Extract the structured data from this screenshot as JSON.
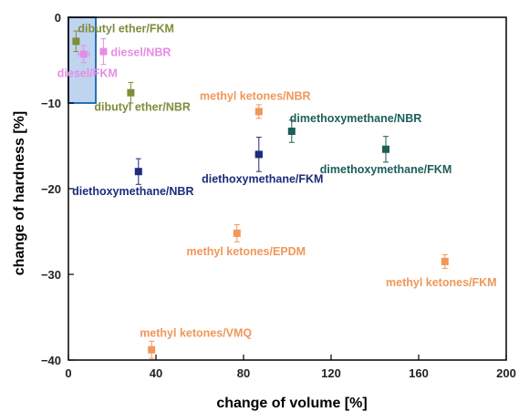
{
  "chart_data": {
    "type": "scatter",
    "xlabel": "change of volume   [%]",
    "ylabel": "change of hardness   [%]",
    "xlim": [
      0,
      200
    ],
    "ylim": [
      -40,
      0
    ],
    "xticks": [
      0,
      40,
      80,
      120,
      160,
      200
    ],
    "yticks": [
      0,
      -10,
      -20,
      -30,
      -40
    ],
    "grid": false,
    "points": [
      {
        "label": "dibutyl ether/FKM",
        "x": 3.5,
        "y": -2.8,
        "yerr": 1.2,
        "xerr": 0,
        "color": "#7f8c3b",
        "label_pos": "right-above"
      },
      {
        "label": "diesel/NBR",
        "x": 16,
        "y": -4,
        "yerr": 1.5,
        "xerr": 0,
        "color": "#e68ce6",
        "label_pos": "right"
      },
      {
        "label": "diesel/FKM",
        "x": 7,
        "y": -4.3,
        "yerr": 1.0,
        "xerr": 2.5,
        "color": "#e68ce6",
        "label_pos": "below"
      },
      {
        "label": "dibutyl ether/NBR",
        "x": 28.5,
        "y": -8.8,
        "yerr": 1.2,
        "xerr": 0,
        "color": "#7f8c3b",
        "label_pos": "below-right"
      },
      {
        "label": "methyl ketones/NBR",
        "x": 87,
        "y": -11,
        "yerr": 0.8,
        "xerr": 0,
        "color": "#f0975a",
        "label_pos": "above"
      },
      {
        "label": "dimethoxymethane/NBR",
        "x": 102,
        "y": -13.3,
        "yerr": 1.3,
        "xerr": 0,
        "color": "#1d5e5a",
        "label_pos": "above-right"
      },
      {
        "label": "dimethoxymethane/FKM",
        "x": 145,
        "y": -15.4,
        "yerr": 1.5,
        "xerr": 0,
        "color": "#1d5e5a",
        "label_pos": "below"
      },
      {
        "label": "diethoxymethane/FKM",
        "x": 87,
        "y": -16,
        "yerr": 2.0,
        "xerr": 1.5,
        "color": "#1d2b7a",
        "label_pos": "below"
      },
      {
        "label": "diethoxymethane/NBR",
        "x": 32,
        "y": -18,
        "yerr": 1.5,
        "xerr": 0,
        "color": "#1d2b7a",
        "label_pos": "below"
      },
      {
        "label": "methyl ketones/EPDM",
        "x": 77,
        "y": -25.2,
        "yerr": 1.0,
        "xerr": 0,
        "color": "#f0975a",
        "label_pos": "below"
      },
      {
        "label": "methyl ketones/FKM",
        "x": 172,
        "y": -28.5,
        "yerr": 0.8,
        "xerr": 0,
        "color": "#f0975a",
        "label_pos": "below"
      },
      {
        "label": "methyl ketones/VMQ",
        "x": 38,
        "y": -38.8,
        "yerr": 1.0,
        "xerr": 0,
        "color": "#f0975a",
        "label_pos": "above-right"
      }
    ],
    "highlight_region": {
      "x": [
        0,
        12.5
      ],
      "y": [
        -10,
        0
      ],
      "fill": "#a9c7ea",
      "stroke": "#2a6fb5"
    }
  }
}
